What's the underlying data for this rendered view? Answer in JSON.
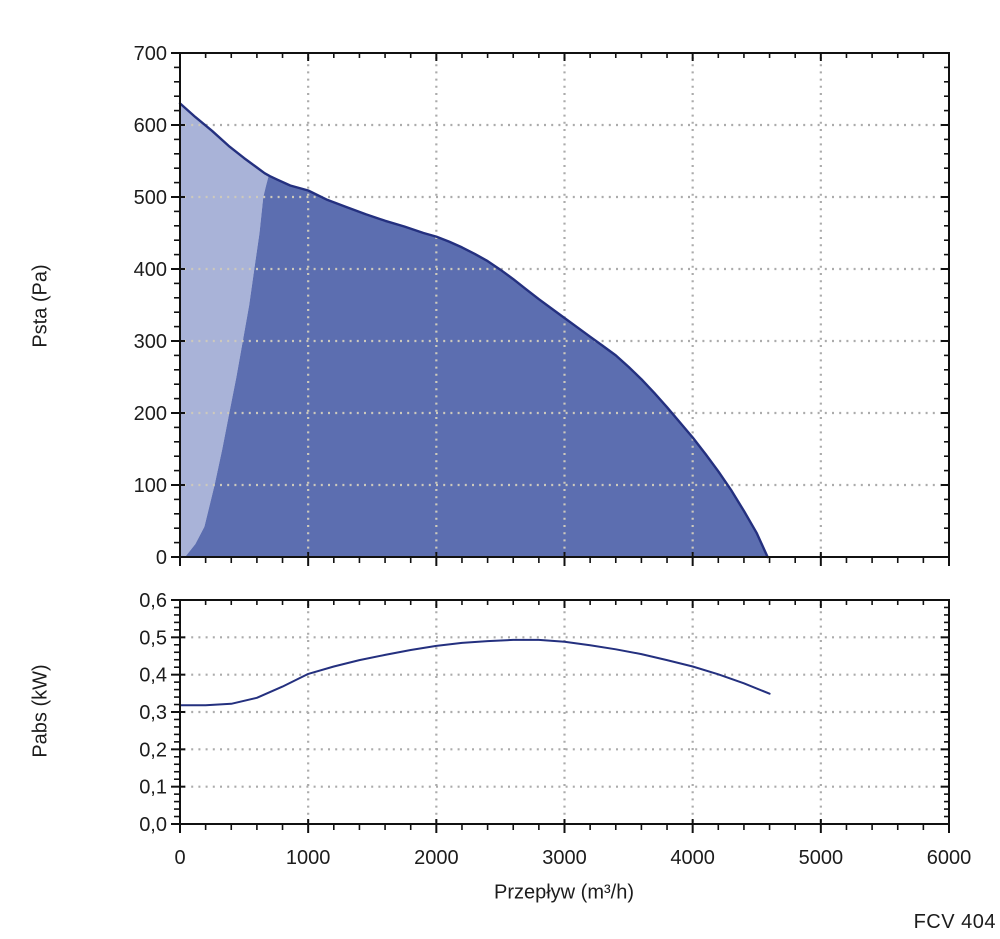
{
  "footer": {
    "model_label": "FCV 404"
  },
  "colors": {
    "curve": "#24307f",
    "fill_dark": "#5c6eb0",
    "fill_light": "#a9b3d8",
    "grid": "#ababab",
    "grid_on_fill": "#cdc9bc",
    "axis": "#111111",
    "text": "#1c1c1c",
    "background": "#ffffff"
  },
  "chart_data": [
    {
      "type": "area",
      "name": "pressure",
      "title": "",
      "xlabel": "Przepływ (m³/h)",
      "ylabel": "Psta (Pa)",
      "xlim": [
        0,
        6000
      ],
      "ylim": [
        0,
        700
      ],
      "grid": "dotted",
      "legend": "none",
      "x_major_ticks": [
        0,
        1000,
        2000,
        3000,
        4000,
        5000,
        6000
      ],
      "x_tick_labels": [
        "0",
        "1000",
        "2000",
        "3000",
        "4000",
        "5000",
        "6000"
      ],
      "x_minor_step": 200,
      "x_labels_visible": false,
      "y_major_ticks": [
        0,
        100,
        200,
        300,
        400,
        500,
        600,
        700
      ],
      "y_tick_labels": [
        "0",
        "100",
        "200",
        "300",
        "400",
        "500",
        "600",
        "700"
      ],
      "y_minor_step": 20,
      "series": [
        {
          "name": "pressure-curve",
          "role": "curve",
          "points": [
            [
              0,
              630
            ],
            [
              120,
              611
            ],
            [
              250,
              592
            ],
            [
              380,
              571
            ],
            [
              500,
              554
            ],
            [
              600,
              541
            ],
            [
              660,
              533
            ],
            [
              700,
              529
            ],
            [
              760,
              524
            ],
            [
              860,
              516
            ],
            [
              1000,
              509
            ],
            [
              1150,
              496
            ],
            [
              1300,
              486
            ],
            [
              1450,
              476
            ],
            [
              1600,
              467
            ],
            [
              1750,
              459
            ],
            [
              1900,
              450
            ],
            [
              2000,
              445
            ],
            [
              2100,
              438
            ],
            [
              2200,
              430
            ],
            [
              2300,
              421
            ],
            [
              2400,
              411
            ],
            [
              2500,
              399
            ],
            [
              2600,
              386
            ],
            [
              2700,
              372
            ],
            [
              2800,
              358
            ],
            [
              2900,
              345
            ],
            [
              3000,
              332
            ],
            [
              3100,
              319
            ],
            [
              3200,
              306
            ],
            [
              3300,
              293
            ],
            [
              3400,
              280
            ],
            [
              3500,
              264
            ],
            [
              3600,
              247
            ],
            [
              3700,
              228
            ],
            [
              3800,
              208
            ],
            [
              3900,
              187
            ],
            [
              4000,
              166
            ],
            [
              4100,
              143
            ],
            [
              4200,
              119
            ],
            [
              4300,
              93
            ],
            [
              4400,
              64
            ],
            [
              4500,
              33
            ],
            [
              4585,
              0
            ]
          ]
        },
        {
          "name": "stall-boundary",
          "role": "zone-divider",
          "points": [
            [
              40,
              0
            ],
            [
              120,
              18
            ],
            [
              190,
              42
            ],
            [
              270,
              100
            ],
            [
              330,
              150
            ],
            [
              385,
              200
            ],
            [
              440,
              250
            ],
            [
              490,
              300
            ],
            [
              540,
              350
            ],
            [
              580,
              400
            ],
            [
              620,
              450
            ],
            [
              650,
              500
            ],
            [
              670,
              515
            ],
            [
              690,
              528
            ]
          ]
        }
      ]
    },
    {
      "type": "line",
      "name": "power",
      "title": "",
      "xlabel": "Przepływ (m³/h)",
      "ylabel": "Pabs (kW)",
      "xlim": [
        0,
        6000
      ],
      "ylim": [
        0,
        0.6
      ],
      "grid": "dotted",
      "legend": "none",
      "x_major_ticks": [
        0,
        1000,
        2000,
        3000,
        4000,
        5000,
        6000
      ],
      "x_tick_labels": [
        "0",
        "1000",
        "2000",
        "3000",
        "4000",
        "5000",
        "6000"
      ],
      "x_minor_step": 200,
      "x_labels_visible": true,
      "y_major_ticks": [
        0,
        0.1,
        0.2,
        0.3,
        0.4,
        0.5,
        0.6
      ],
      "y_tick_labels": [
        "0,0",
        "0,1",
        "0,2",
        "0,3",
        "0,4",
        "0,5",
        "0,6"
      ],
      "y_minor_step": 0.02,
      "series": [
        {
          "name": "power-curve",
          "role": "curve",
          "points": [
            [
              0,
              0.318
            ],
            [
              200,
              0.318
            ],
            [
              400,
              0.322
            ],
            [
              600,
              0.338
            ],
            [
              800,
              0.368
            ],
            [
              1000,
              0.402
            ],
            [
              1200,
              0.422
            ],
            [
              1400,
              0.439
            ],
            [
              1600,
              0.453
            ],
            [
              1800,
              0.466
            ],
            [
              2000,
              0.477
            ],
            [
              2200,
              0.485
            ],
            [
              2400,
              0.49
            ],
            [
              2600,
              0.493
            ],
            [
              2800,
              0.493
            ],
            [
              3000,
              0.488
            ],
            [
              3200,
              0.479
            ],
            [
              3400,
              0.468
            ],
            [
              3600,
              0.455
            ],
            [
              3800,
              0.439
            ],
            [
              4000,
              0.422
            ],
            [
              4200,
              0.401
            ],
            [
              4400,
              0.377
            ],
            [
              4600,
              0.349
            ]
          ]
        }
      ]
    }
  ]
}
